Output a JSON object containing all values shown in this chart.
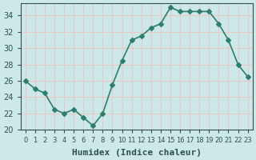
{
  "x": [
    0,
    1,
    2,
    3,
    4,
    5,
    6,
    7,
    8,
    9,
    10,
    11,
    12,
    13,
    14,
    15,
    16,
    17,
    18,
    19,
    20,
    21,
    22,
    23
  ],
  "y": [
    26,
    25,
    24.5,
    22.5,
    22,
    22.5,
    21.5,
    20.5,
    22,
    25.5,
    28.5,
    31,
    31.5,
    32.5,
    33,
    35,
    34.5,
    34.5,
    34.5,
    34.5,
    33,
    31,
    28,
    26.5
  ],
  "line_color": "#2e7d6e",
  "marker": "D",
  "marker_size": 3,
  "bg_color": "#cce8e8",
  "grid_color": "#e8c8c8",
  "xlabel": "Humidex (Indice chaleur)",
  "ylim": [
    20,
    35.5
  ],
  "yticks": [
    20,
    22,
    24,
    26,
    28,
    30,
    32,
    34
  ],
  "xlim": [
    -0.5,
    23.5
  ],
  "xlabel_fontsize": 8,
  "tick_fontsize": 7,
  "line_width": 1.2,
  "tick_color": "#2e5050"
}
